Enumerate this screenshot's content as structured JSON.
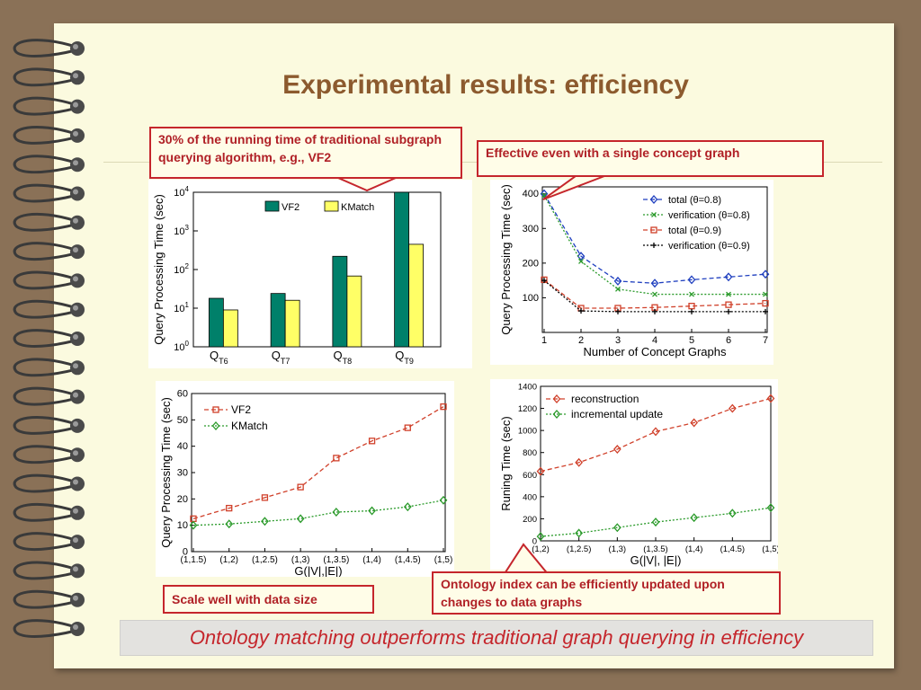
{
  "slide": {
    "title": "Experimental results: efficiency",
    "callouts": {
      "running_time": "30% of the running time of traditional subgraph querying algorithm, e.g., VF2",
      "single_concept": "Effective even with a single concept graph",
      "scale": "Scale well with data size",
      "ontology_index": "Ontology index can be efficiently updated upon changes to data graphs"
    },
    "conclusion": "Ontology matching outperforms traditional graph querying in efficiency"
  },
  "colors": {
    "vf2_bar": "#00806a",
    "kmatch_bar": "#ffff66",
    "blue": "#1f3fbf",
    "green": "#2a9a2a",
    "red": "#d0402a",
    "black": "#000000",
    "callout_border": "#c5262c"
  },
  "chart_data": [
    {
      "type": "bar",
      "ylabel": "Query Processing Time (sec)",
      "yscale": "log",
      "ylim": [
        1,
        10000
      ],
      "yticks": [
        "10^0",
        "10^1",
        "10^2",
        "10^3",
        "10^4"
      ],
      "categories": [
        "QT6",
        "QT7",
        "QT8",
        "QT9"
      ],
      "category_labels": [
        {
          "main": "Q",
          "sub": "T6"
        },
        {
          "main": "Q",
          "sub": "T7"
        },
        {
          "main": "Q",
          "sub": "T8"
        },
        {
          "main": "Q",
          "sub": "T9"
        }
      ],
      "legend_position": "top",
      "series": [
        {
          "name": "VF2",
          "values": [
            18,
            24,
            220,
            10000
          ],
          "icon": "bar-swatch-icon"
        },
        {
          "name": "KMatch",
          "values": [
            9,
            16,
            68,
            450
          ],
          "icon": "bar-swatch-icon"
        }
      ]
    },
    {
      "type": "line",
      "xlabel": "Number of Concept Graphs",
      "ylabel": "Query Processing Time (sec)",
      "x": [
        1,
        2,
        3,
        4,
        5,
        6,
        7
      ],
      "xlim": [
        1,
        7
      ],
      "ylim": [
        0,
        420
      ],
      "yticks": [
        100,
        200,
        300,
        400
      ],
      "legend_position": "top-right",
      "series": [
        {
          "name": "total (θ=0.8)",
          "values": [
            400,
            220,
            148,
            142,
            152,
            160,
            168
          ],
          "marker": "diamond-marker-icon"
        },
        {
          "name": "verification (θ=0.8)",
          "values": [
            395,
            205,
            125,
            110,
            110,
            110,
            110
          ],
          "marker": "x-marker-icon"
        },
        {
          "name": "total (θ=0.9)",
          "values": [
            152,
            70,
            70,
            72,
            76,
            80,
            84
          ],
          "marker": "square-marker-icon"
        },
        {
          "name": "verification (θ=0.9)",
          "values": [
            150,
            62,
            60,
            60,
            60,
            60,
            60
          ],
          "marker": "plus-marker-icon"
        }
      ]
    },
    {
      "type": "line",
      "xlabel": "G(|V|,|E|)",
      "ylabel": "Query Processing Time (sec)",
      "categories": [
        "(1,1.5)",
        "(1,2)",
        "(1,2.5)",
        "(1,3)",
        "(1,3.5)",
        "(1,4)",
        "(1,4.5)",
        "(1,5)"
      ],
      "ylim": [
        0,
        60
      ],
      "yticks": [
        0,
        10,
        20,
        30,
        40,
        50,
        60
      ],
      "legend_position": "top-left",
      "series": [
        {
          "name": "VF2",
          "values": [
            12.5,
            16.5,
            20.5,
            24.5,
            35.5,
            42,
            47,
            55
          ],
          "marker": "square-marker-icon"
        },
        {
          "name": "KMatch",
          "values": [
            10,
            10.5,
            11.5,
            12.5,
            15,
            15.5,
            17,
            19.5
          ],
          "marker": "diamond-marker-icon"
        }
      ]
    },
    {
      "type": "line",
      "xlabel": "G(|V|, |E|)",
      "ylabel": "Runing Time (sec)",
      "categories": [
        "(1,2)",
        "(1,2.5)",
        "(1,3)",
        "(1,3.5)",
        "(1,4)",
        "(1,4.5)",
        "(1,5)"
      ],
      "ylim": [
        0,
        1400
      ],
      "yticks": [
        0,
        200,
        400,
        600,
        800,
        1000,
        1200,
        1400
      ],
      "legend_position": "top-left",
      "series": [
        {
          "name": "reconstruction",
          "values": [
            630,
            710,
            830,
            990,
            1070,
            1200,
            1290
          ],
          "marker": "diamond-marker-icon"
        },
        {
          "name": "incremental update",
          "values": [
            40,
            70,
            120,
            170,
            210,
            250,
            300
          ],
          "marker": "diamond-marker-icon"
        }
      ]
    }
  ]
}
